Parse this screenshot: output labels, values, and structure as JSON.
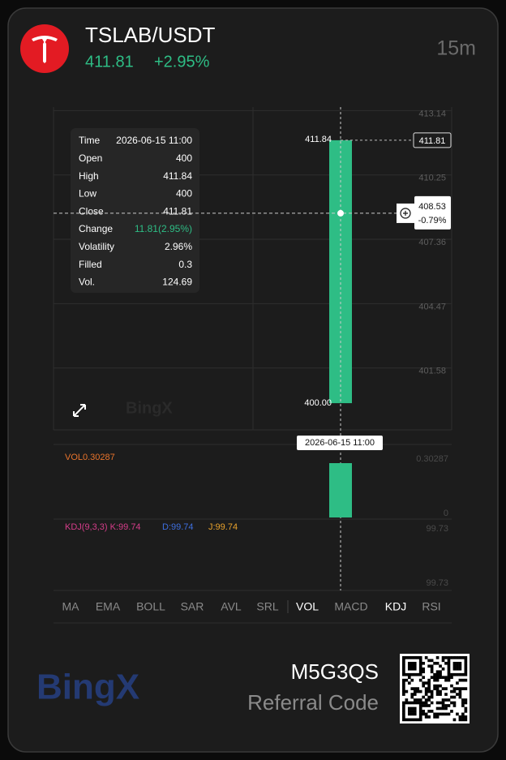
{
  "header": {
    "symbol": "TSLAB/USDT",
    "price": "411.81",
    "change": "+2.95%",
    "interval": "15m"
  },
  "chart_data": {
    "type": "candlestick",
    "x": [
      "2026-06-15 11:00"
    ],
    "open": [
      400
    ],
    "high": [
      411.84
    ],
    "low": [
      400
    ],
    "close": [
      411.81
    ],
    "low_value_labels": [
      "400.00"
    ],
    "color": "#2ebd85",
    "ylim": [
      398.8,
      413.3
    ],
    "yticks": [
      401.58,
      404.47,
      407.36,
      410.25,
      413.14
    ],
    "grid": true,
    "crosshair": {
      "price": 408.53,
      "change": "-0.79%"
    }
  },
  "volume": {
    "label": "VOL0.30287",
    "values": [
      0.30287
    ],
    "color": "#2ebd85",
    "ylim": [
      0,
      0.30287
    ],
    "yticks": [
      0,
      0.30287
    ]
  },
  "kdj": {
    "k": "KDJ(9,3,3) K:99.74",
    "d": "D:99.74",
    "j": "J:99.74",
    "axis_labels": [
      "99.73",
      "99.73"
    ]
  },
  "tooltip": {
    "rows": [
      [
        "Time",
        "2026-06-15 11:00"
      ],
      [
        "Open",
        "400"
      ],
      [
        "High",
        "411.84"
      ],
      [
        "Low",
        "400"
      ],
      [
        "Close",
        "411.81"
      ],
      [
        "Change",
        "11.81(2.95%)"
      ],
      [
        "Volatility",
        "2.96%"
      ],
      [
        "Filled",
        "0.3"
      ],
      [
        "Vol.",
        "124.69"
      ]
    ]
  },
  "tabs": [
    "MA",
    "EMA",
    "BOLL",
    "SAR",
    "AVL",
    "SRL",
    "VOL",
    "MACD",
    "KDJ",
    "RSI"
  ],
  "active_tabs": [
    6,
    8
  ],
  "footer": {
    "code": "M5G3QS",
    "caption": "Referral Code",
    "brand": "BingX"
  }
}
